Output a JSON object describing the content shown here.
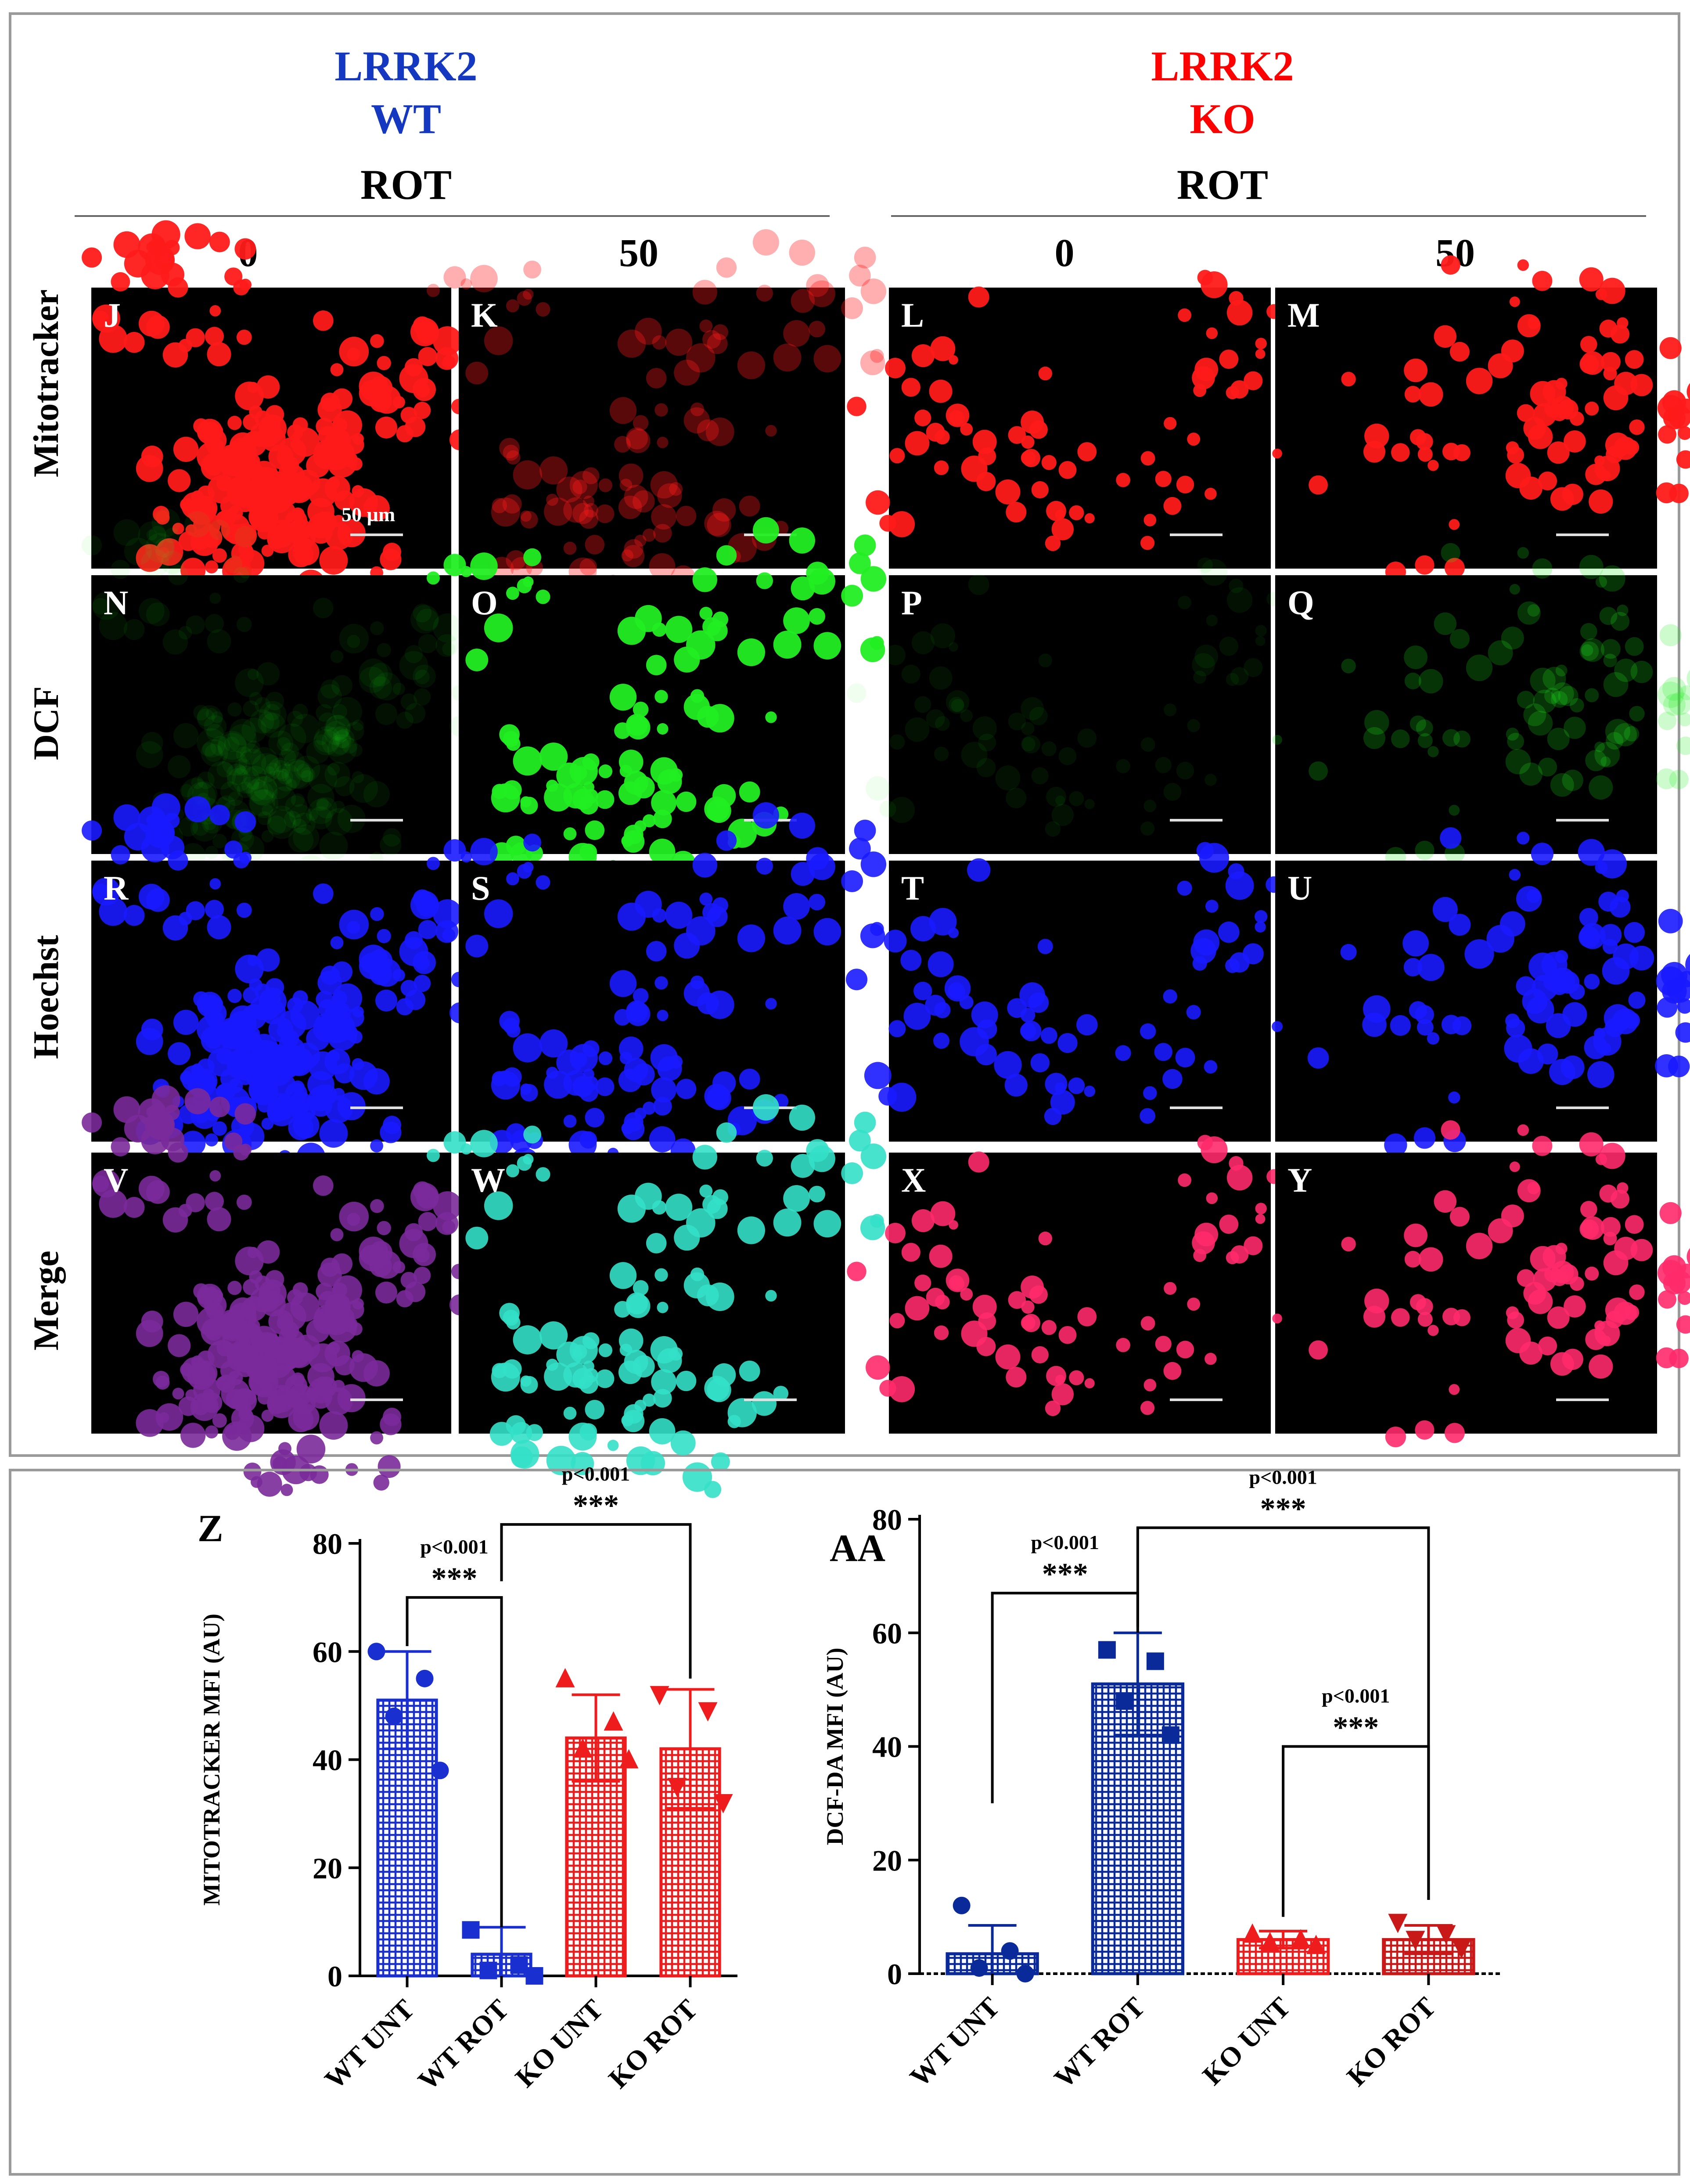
{
  "figure": {
    "groups": [
      {
        "line1": "LRRK2",
        "line2": "WT",
        "color": "#1538c0"
      },
      {
        "line1": "LRRK2",
        "line2": "KO",
        "color": "#ff0000"
      }
    ],
    "treatment_label": "ROT",
    "doses": [
      "0",
      "50",
      "0",
      "50"
    ],
    "row_labels": [
      "Mitotracker",
      "DCF",
      "Hoechst",
      "Merge"
    ],
    "panel_letters": [
      "J",
      "K",
      "L",
      "M",
      "N",
      "O",
      "P",
      "Q",
      "R",
      "S",
      "T",
      "U",
      "V",
      "W",
      "X",
      "Y"
    ],
    "scale_bar_label": "50 µm",
    "colors": {
      "mitotracker": "#ff1a1a",
      "dcf": "#22ee22",
      "hoechst": "#1a1aff",
      "wt_blue": "#1a2fd0",
      "ko_red": "#ee1c1c"
    }
  },
  "chart_data": [
    {
      "type": "bar",
      "panel_letter": "Z",
      "ylabel": "MITOTRACKER MFI (AU)",
      "categories": [
        "WT UNT",
        "WT ROT",
        "KO UNT",
        "KO ROT"
      ],
      "values": [
        51,
        4,
        44,
        42
      ],
      "errors": [
        9,
        5,
        8,
        11
      ],
      "points": [
        [
          60,
          55,
          48,
          38
        ],
        [
          8.5,
          2,
          1,
          0
        ],
        [
          55,
          47,
          42,
          40
        ],
        [
          52,
          49,
          35,
          32
        ]
      ],
      "bar_colors": [
        "#1a2fd0",
        "#1a2fd0",
        "#ee1c1c",
        "#ee1c1c"
      ],
      "ylim": [
        0,
        80
      ],
      "yticks": [
        "0",
        "20",
        "40",
        "60",
        "80"
      ],
      "comparisons": [
        {
          "from": 0,
          "to": 1,
          "p": "p<0.001",
          "stars": "***"
        },
        {
          "from": 1,
          "to": 3,
          "p": "p<0.001",
          "stars": "***"
        }
      ]
    },
    {
      "type": "bar",
      "panel_letter": "AA",
      "ylabel": "DCF-DA MFI (AU)",
      "categories": [
        "WT UNT",
        "WT ROT",
        "KO UNT",
        "KO ROT"
      ],
      "values": [
        3.5,
        51,
        6,
        6
      ],
      "errors": [
        5,
        9,
        1.5,
        2.5
      ],
      "points": [
        [
          12,
          4,
          1,
          0
        ],
        [
          57,
          55,
          48,
          42
        ],
        [
          7,
          6,
          5.5,
          5
        ],
        [
          9,
          7,
          6,
          4.5
        ]
      ],
      "bar_colors": [
        "#0a2a9a",
        "#0a2a9a",
        "#ee1c1c",
        "#c81818"
      ],
      "ylim": [
        0,
        80
      ],
      "yticks": [
        "0",
        "20",
        "40",
        "60",
        "80"
      ],
      "comparisons": [
        {
          "from": 0,
          "to": 1,
          "p": "p<0.001",
          "stars": "***"
        },
        {
          "from": 1,
          "to": 3,
          "p": "p<0.001",
          "stars": "***"
        },
        {
          "from": 2,
          "to": 3,
          "p": "p<0.001",
          "stars": "***"
        }
      ]
    }
  ]
}
